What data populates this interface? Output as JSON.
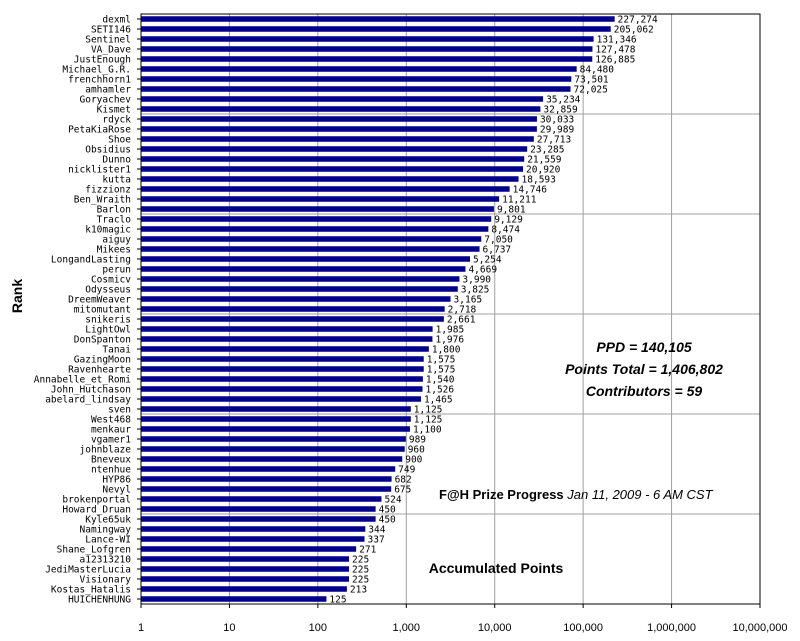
{
  "chart_data": {
    "type": "bar",
    "orientation": "horizontal",
    "x_scale": "log",
    "xlim": [
      1,
      10000000
    ],
    "x_ticks": [
      "1",
      "10",
      "100",
      "1,000",
      "10,000",
      "100,000",
      "1,000,000",
      "10,000,000"
    ],
    "xlabel": "Accumulated Points",
    "ylabel": "Rank",
    "grid": "vertical and horizontal gridlines",
    "bar_color": "#00008B",
    "categories": [
      "dexml",
      "SETI146",
      "Sentinel",
      "VA_Dave",
      "JustEnough",
      "Michael_G.R.",
      "frenchhorn1",
      "amhamler",
      "Goryachev",
      "Kismet",
      "rdyck",
      "PetaKiaRose",
      "Shoe",
      "Obsidius",
      "Dunno",
      "nicklister1",
      "kutta",
      "fizzionz",
      "Ben_Wraith",
      "Barlon",
      "Traclo",
      "k10magic",
      "aiguy",
      "Mikees",
      "LongandLasting",
      "perun",
      "Cosmicv",
      "Odysseus",
      "DreemWeaver",
      "mitomutant",
      "snikeris",
      "LightOwl",
      "DonSpanton",
      "Tanai",
      "GazingMoon",
      "Ravenhearte",
      "Annabelle_et_Romi",
      "John_Hutchason",
      "abelard_lindsay",
      "sven",
      "West468",
      "menkaur",
      "vgamer1",
      "johnblaze",
      "Bneveux",
      "ntenhue",
      "HYP86",
      "Nevyl",
      "brokenportal",
      "Howard_Druan",
      "Kyle65uk",
      "Namingway",
      "Lance-WI",
      "Shane_Lofgren",
      "a12313210",
      "JediMasterLucia",
      "Visionary",
      "Kostas_Hatalis",
      "HUICHENHUNG"
    ],
    "values": [
      227274,
      205062,
      131346,
      127478,
      126885,
      84480,
      73501,
      72025,
      35234,
      32859,
      30033,
      29989,
      27713,
      23285,
      21559,
      20920,
      18593,
      14746,
      11211,
      9801,
      9129,
      8474,
      7050,
      6737,
      5254,
      4669,
      3990,
      3825,
      3165,
      2718,
      2661,
      1985,
      1976,
      1800,
      1575,
      1575,
      1540,
      1526,
      1465,
      1125,
      1125,
      1100,
      989,
      960,
      900,
      749,
      682,
      675,
      524,
      450,
      450,
      344,
      337,
      271,
      225,
      225,
      225,
      213,
      125
    ],
    "labels": [
      "227,274",
      "205,062",
      "131,346",
      "127,478",
      "126,885",
      "84,480",
      "73,501",
      "72,025",
      "35,234",
      "32,859",
      "30,033",
      "29,989",
      "27,713",
      "23,285",
      "21,559",
      "20,920",
      "18,593",
      "14,746",
      "11,211",
      "9,801",
      "9,129",
      "8,474",
      "7,050",
      "6,737",
      "5,254",
      "4,669",
      "3,990",
      "3,825",
      "3,165",
      "2,718",
      "2,661",
      "1,985",
      "1,976",
      "1,800",
      "1,575",
      "1,575",
      "1,540",
      "1,526",
      "1,465",
      "1,125",
      "1,125",
      "1,100",
      "989",
      "960",
      "900",
      "749",
      "682",
      "675",
      "524",
      "450",
      "450",
      "344",
      "337",
      "271",
      "225",
      "225",
      "225",
      "213",
      "125"
    ],
    "annotations": {
      "ppd": "PPD = 140,105",
      "points_total": "Points Total = 1,406,802",
      "contributors": "Contributors = 59",
      "progress_title": "F@H Prize Progress",
      "progress_date": " Jan 11, 2009 - 6 AM CST"
    }
  }
}
